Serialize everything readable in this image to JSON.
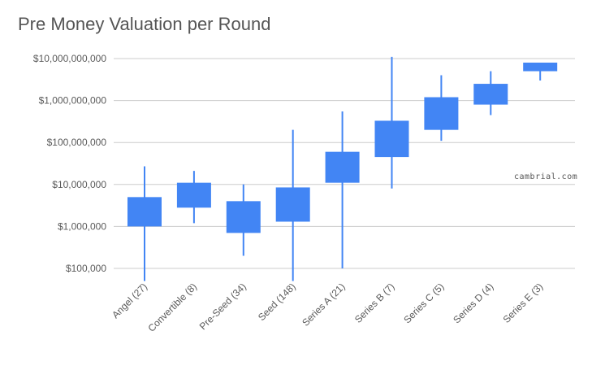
{
  "chart_data": {
    "type": "candlestick",
    "title": "Pre Money Valuation per Round",
    "y_scale": "log",
    "ylim": [
      50000,
      12000000000
    ],
    "y_ticks": [
      100000,
      1000000,
      10000000,
      100000000,
      1000000000,
      10000000000
    ],
    "y_tick_labels": [
      "$100,000",
      "$1,000,000",
      "$10,000,000",
      "$100,000,000",
      "$1,000,000,000",
      "$10,000,000,000"
    ],
    "grid": true,
    "legend": "none",
    "color": "#4285f4",
    "categories": [
      "Angel (27)",
      "Convertible (8)",
      "Pre-Seed (34)",
      "Seed (148)",
      "Series A (21)",
      "Series B (7)",
      "Series C (5)",
      "Series D (4)",
      "Series E (3)"
    ],
    "low": [
      50000,
      1200000,
      200000,
      50000,
      100000,
      8000000,
      110000000,
      450000000,
      3000000000
    ],
    "open": [
      1000000,
      2800000,
      700000,
      1300000,
      11000000,
      45000000,
      200000000,
      800000000,
      5000000000
    ],
    "close": [
      5000000,
      11000000,
      4000000,
      8500000,
      60000000,
      330000000,
      1200000000,
      2500000000,
      8000000000
    ],
    "high": [
      27000000,
      21000000,
      10000000,
      200000000,
      550000000,
      11000000000,
      4000000000,
      5000000000,
      8000000000
    ]
  },
  "watermark": "cambrial.com"
}
